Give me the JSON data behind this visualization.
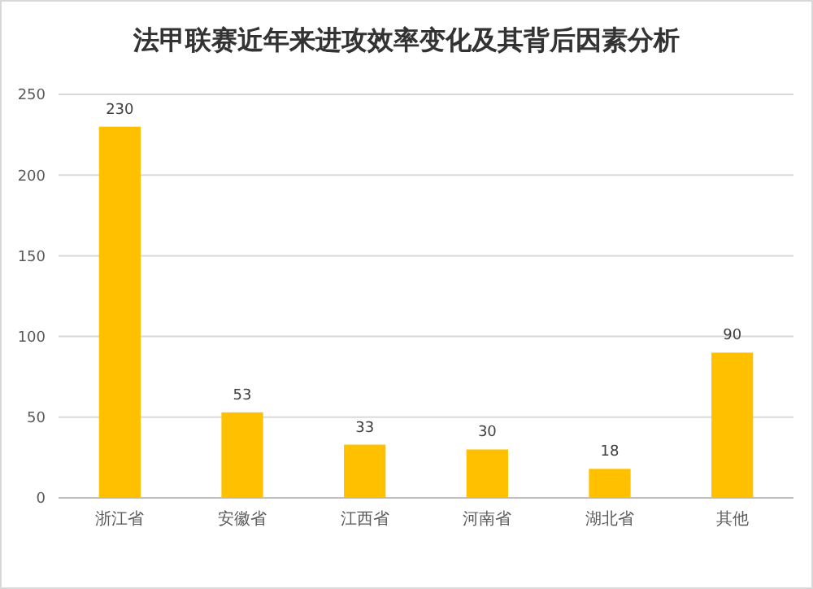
{
  "chart_data": {
    "type": "bar",
    "title": "法甲联赛近年来进攻效率变化及其背后因素分析",
    "categories": [
      "浙江省",
      "安徽省",
      "江西省",
      "河南省",
      "湖北省",
      "其他"
    ],
    "values": [
      230,
      53,
      33,
      30,
      18,
      90
    ],
    "color": "#ffc000",
    "ylim": [
      0,
      250
    ],
    "yticks": [
      0,
      50,
      100,
      150,
      200,
      250
    ],
    "grid": "y",
    "data_labels": true
  }
}
